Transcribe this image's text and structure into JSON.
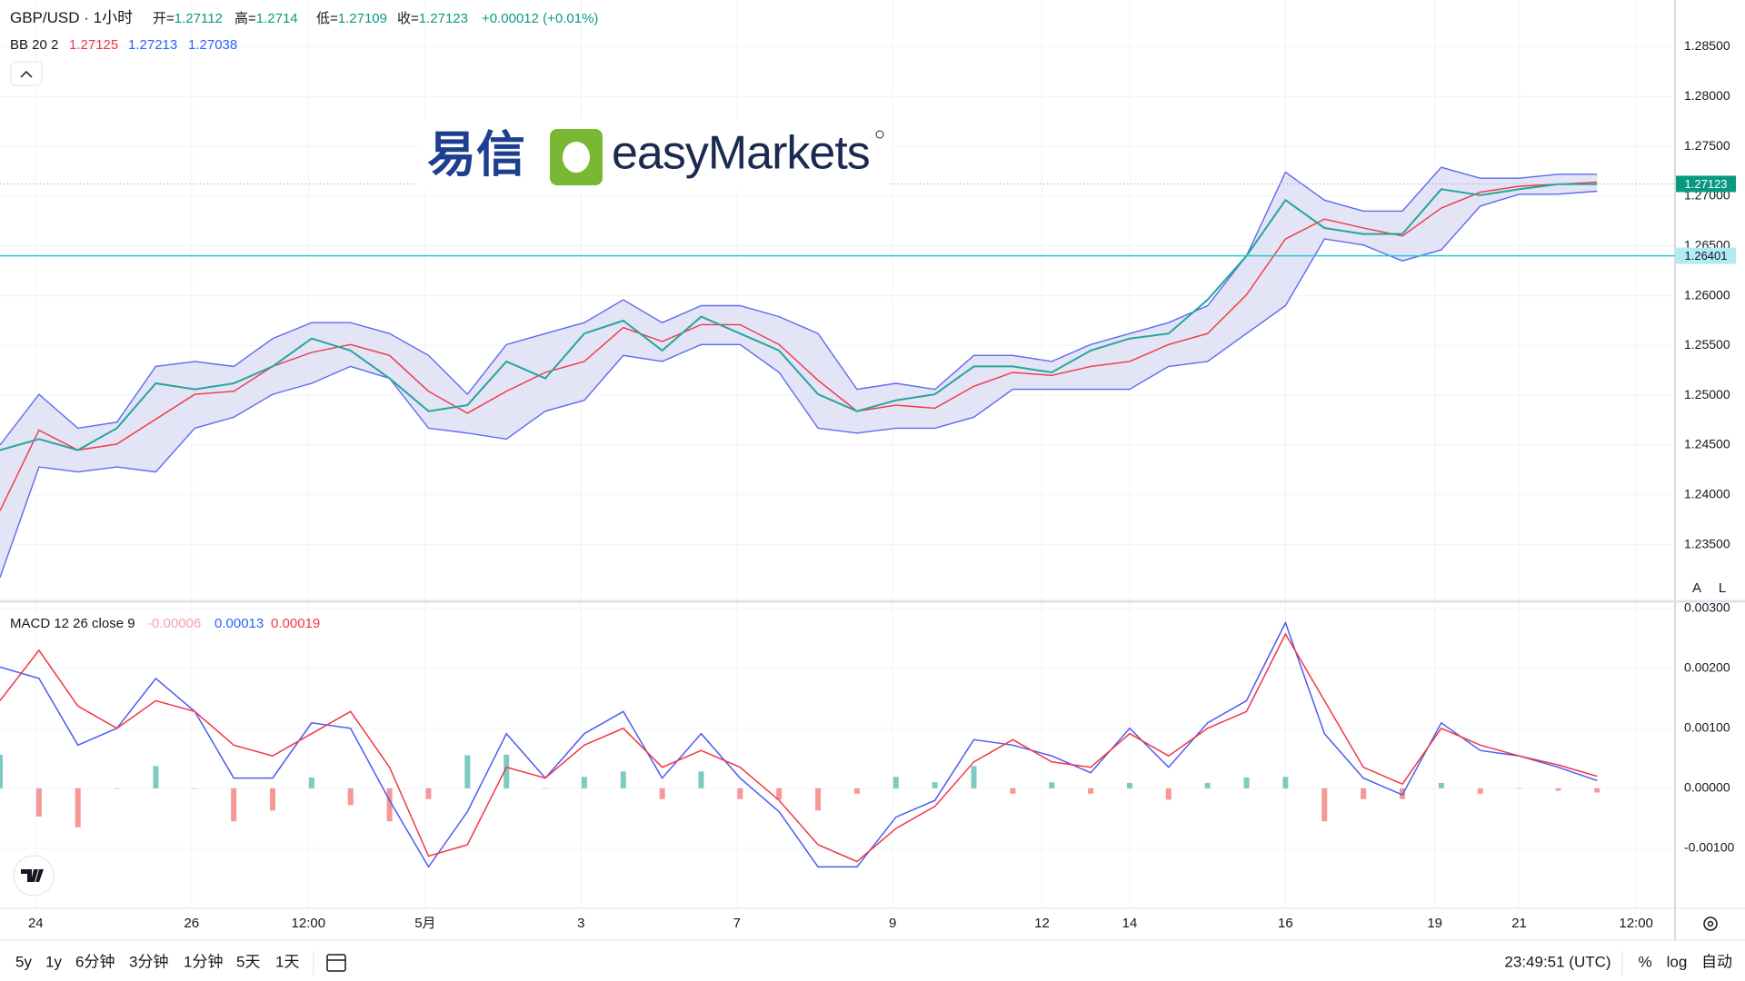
{
  "header": {
    "symbol": "GBP/USD · 1小时",
    "ohlc": [
      {
        "label": "开=",
        "value": 1.27112
      },
      {
        "label": "高=",
        "value": 1.2714
      },
      {
        "label": "低=",
        "value": 1.27109
      },
      {
        "label": "收=",
        "value": 1.27123
      }
    ],
    "change": "+0.00012 (+0.01%)",
    "logo": {
      "cn": "易信",
      "en": "easyMarkets"
    },
    "scale_buttons": [
      "A",
      "L"
    ]
  },
  "toolbar": {
    "ranges": [
      "5y",
      "1y",
      "6分钟",
      "3分钟",
      "1分钟",
      "5天",
      "1天"
    ],
    "clock": "23:49:51 (UTC)",
    "options": [
      "%",
      "log",
      "自动"
    ]
  },
  "chart_data": [
    {
      "type": "line",
      "legend": {
        "name": "BB 20 2",
        "values": [
          1.27125,
          1.27213,
          1.27038
        ],
        "colors": [
          "#f23645",
          "#2962ff",
          "#2962ff"
        ]
      },
      "x": [
        0,
        12,
        24,
        36,
        48,
        60,
        72,
        84,
        96,
        108,
        120,
        132,
        144,
        156,
        168,
        180,
        192,
        204,
        216,
        228,
        240,
        252,
        264,
        276,
        288,
        300,
        312,
        324,
        336,
        348,
        360,
        372,
        384,
        396,
        408,
        420,
        432,
        444,
        456,
        468,
        480,
        492
      ],
      "series": [
        {
          "color": "#26a69a",
          "values": [
            1.2445,
            1.2456,
            1.2445,
            1.2467,
            1.2512,
            1.2506,
            1.2512,
            1.2529,
            1.2557,
            1.2545,
            1.2517,
            1.2484,
            1.249,
            1.2534,
            1.2517,
            1.2562,
            1.2575,
            1.2545,
            1.2579,
            1.2562,
            1.2545,
            1.2501,
            1.2484,
            1.2495,
            1.2501,
            1.2529,
            1.2529,
            1.2523,
            1.2545,
            1.2557,
            1.2562,
            1.2596,
            1.264,
            1.2696,
            1.2668,
            1.2662,
            1.2662,
            1.2707,
            1.2701,
            1.2707,
            1.2712,
            1.2712
          ]
        },
        {
          "color": "#5c6bf0",
          "values": [
            1.245,
            1.2501,
            1.2467,
            1.2473,
            1.2529,
            1.2534,
            1.2529,
            1.2557,
            1.2573,
            1.2573,
            1.2562,
            1.254,
            1.2501,
            1.2551,
            1.2562,
            1.2573,
            1.2596,
            1.2573,
            1.259,
            1.259,
            1.2579,
            1.2562,
            1.2506,
            1.2512,
            1.2506,
            1.254,
            1.254,
            1.2534,
            1.2551,
            1.2562,
            1.2573,
            1.259,
            1.264,
            1.2724,
            1.2696,
            1.2685,
            1.2685,
            1.2729,
            1.2718,
            1.2718,
            1.2722,
            1.2722
          ]
        },
        {
          "color": "#f23645",
          "values": [
            1.2384,
            1.2465,
            1.2445,
            1.2451,
            1.2476,
            1.2501,
            1.2504,
            1.2529,
            1.2543,
            1.2551,
            1.254,
            1.2504,
            1.2482,
            1.2504,
            1.2523,
            1.2534,
            1.2568,
            1.2554,
            1.2571,
            1.2571,
            1.2551,
            1.2515,
            1.2484,
            1.249,
            1.2487,
            1.2509,
            1.2523,
            1.252,
            1.2529,
            1.2534,
            1.2551,
            1.2562,
            1.2601,
            1.2657,
            1.2677,
            1.2668,
            1.266,
            1.2688,
            1.2704,
            1.271,
            1.2712,
            1.2714
          ]
        },
        {
          "color": "#5c6bf0",
          "values": [
            1.2317,
            1.2428,
            1.2423,
            1.2428,
            1.2423,
            1.2467,
            1.2478,
            1.2501,
            1.2512,
            1.2529,
            1.2517,
            1.2467,
            1.2462,
            1.2456,
            1.2484,
            1.2495,
            1.254,
            1.2534,
            1.2551,
            1.2551,
            1.2523,
            1.2467,
            1.2462,
            1.2467,
            1.2467,
            1.2478,
            1.2506,
            1.2506,
            1.2506,
            1.2506,
            1.2529,
            1.2534,
            1.2562,
            1.259,
            1.2657,
            1.2651,
            1.2635,
            1.2646,
            1.269,
            1.2702,
            1.2702,
            1.2705
          ]
        }
      ],
      "band_color": "#e3e4f6",
      "xlim": [
        0,
        516
      ],
      "xticks": [
        {
          "value": 11,
          "label": "24"
        },
        {
          "value": 59,
          "label": "26"
        },
        {
          "value": 95,
          "label": "12:00"
        },
        {
          "value": 131,
          "label": "5月"
        },
        {
          "value": 179,
          "label": "3"
        },
        {
          "value": 227,
          "label": "7"
        },
        {
          "value": 275,
          "label": "9"
        },
        {
          "value": 321,
          "label": "12"
        },
        {
          "value": 348,
          "label": "14"
        },
        {
          "value": 396,
          "label": "16"
        },
        {
          "value": 442,
          "label": "19"
        },
        {
          "value": 468,
          "label": "21"
        },
        {
          "value": 504,
          "label": "12:00"
        }
      ],
      "ylim": [
        1.2294,
        1.2897
      ],
      "yticks": [
        {
          "value": 1.235,
          "label": "1.23500"
        },
        {
          "value": 1.24,
          "label": "1.24000"
        },
        {
          "value": 1.245,
          "label": "1.24500"
        },
        {
          "value": 1.25,
          "label": "1.25000"
        },
        {
          "value": 1.255,
          "label": "1.25500"
        },
        {
          "value": 1.26,
          "label": "1.26000"
        },
        {
          "value": 1.265,
          "label": "1.26500"
        },
        {
          "value": 1.27,
          "label": "1.27000"
        },
        {
          "value": 1.275,
          "label": "1.27500"
        },
        {
          "value": 1.28,
          "label": "1.28000"
        },
        {
          "value": 1.285,
          "label": "1.28500"
        }
      ],
      "grid": true,
      "hlines": [
        {
          "value": 1.26401,
          "color": "#26c6da"
        }
      ],
      "last_price": {
        "value": 1.27123,
        "color": "#089981"
      }
    },
    {
      "type": "macd",
      "legend": {
        "name": "MACD 12 26 close 9",
        "values": [
          -6e-05,
          0.00013,
          0.00019
        ],
        "colors": [
          "#f7a1a9",
          "#2962ff",
          "#f23645"
        ]
      },
      "x": [
        0,
        12,
        24,
        36,
        48,
        60,
        72,
        84,
        96,
        108,
        120,
        132,
        144,
        156,
        168,
        180,
        192,
        204,
        216,
        228,
        240,
        252,
        264,
        276,
        288,
        300,
        312,
        324,
        336,
        348,
        360,
        372,
        384,
        396,
        408,
        420,
        432,
        444,
        456,
        468,
        480,
        492
      ],
      "series": [
        {
          "color": "#4a5cf0",
          "values": [
            0.00202,
            0.00183,
            0.00072,
            0.001,
            0.00183,
            0.00128,
            0.00017,
            0.00017,
            0.00109,
            0.001,
            -0.0002,
            -0.00131,
            -0.00039,
            0.00091,
            0.00017,
            0.00091,
            0.00128,
            0.00017,
            0.00091,
            0.00017,
            -0.00039,
            -0.00131,
            -0.00131,
            -0.00048,
            -0.0002,
            0.00081,
            0.00072,
            0.00054,
            0.00026,
            0.001,
            0.00035,
            0.00109,
            0.00146,
            0.00276,
            0.00091,
            0.00017,
            -0.00011,
            0.00109,
            0.00063,
            0.00054,
            0.00035,
            0.00013
          ]
        },
        {
          "color": "#f23645",
          "values": [
            0.00146,
            0.0023,
            0.00137,
            0.001,
            0.00146,
            0.00128,
            0.00072,
            0.00054,
            0.00091,
            0.00128,
            0.00035,
            -0.00113,
            -0.00094,
            0.00035,
            0.00017,
            0.00072,
            0.001,
            0.00035,
            0.00063,
            0.00035,
            -0.0002,
            -0.00094,
            -0.00122,
            -0.00067,
            -0.0003,
            0.00044,
            0.00081,
            0.00044,
            0.00035,
            0.00091,
            0.00054,
            0.001,
            0.00128,
            0.00257,
            0.00146,
            0.00035,
            7e-05,
            0.001,
            0.00072,
            0.00054,
            0.00039,
            0.0002
          ]
        }
      ],
      "histogram": {
        "up_color": "#26a69a",
        "down_color": "#ef5350",
        "values": [
          0.00056,
          -0.00047,
          -0.00065,
          0,
          0.00037,
          0,
          -0.00055,
          -0.00037,
          0.00018,
          -0.00028,
          -0.00055,
          -0.00018,
          0.00055,
          0.00056,
          0,
          0.00019,
          0.00028,
          -0.00018,
          0.00028,
          -0.00018,
          -0.00019,
          -0.00037,
          -9e-05,
          0.00019,
          0.0001,
          0.00037,
          -9e-05,
          0.0001,
          -9e-05,
          9e-05,
          -0.00019,
          9e-05,
          0.00018,
          0.00019,
          -0.00055,
          -0.00018,
          -0.00018,
          9e-05,
          -9e-05,
          0,
          -4e-05,
          -7e-05
        ]
      },
      "xlim": [
        0,
        516
      ],
      "ylim": [
        -0.002,
        0.0031
      ],
      "yticks": [
        {
          "value": -0.001,
          "label": "-0.00100"
        },
        {
          "value": 0,
          "label": "0.00000"
        },
        {
          "value": 0.001,
          "label": "0.00100"
        },
        {
          "value": 0.002,
          "label": "0.00200"
        },
        {
          "value": 0.003,
          "label": "0.00300"
        }
      ],
      "grid": true
    }
  ]
}
